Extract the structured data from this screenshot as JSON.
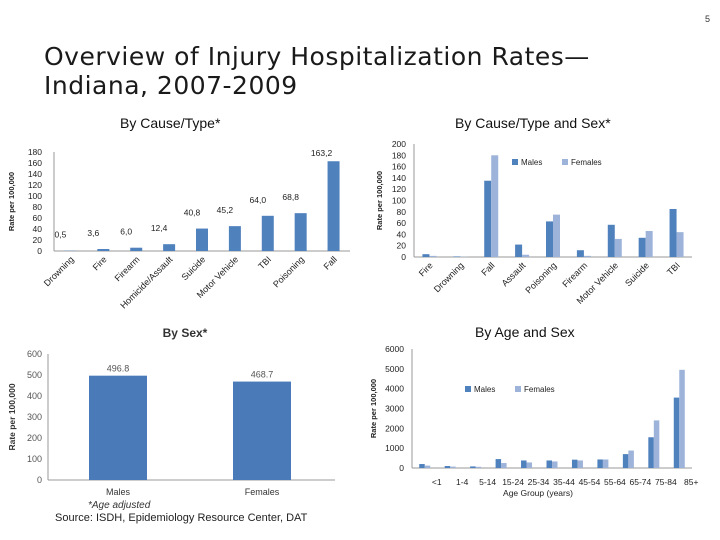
{
  "page": {
    "number": "5",
    "title_line1": "Overview of Injury Hospitalization Rates—",
    "title_line2": "Indiana, 2007-2009",
    "source": "Source: ISDH, Epidemiology Resource Center, DAT"
  },
  "colors": {
    "dark": "#4f81bd",
    "light": "#9db3d9",
    "sex_bar": "#4a7ab8"
  },
  "chart_data": [
    {
      "id": "by-cause-type",
      "type": "bar",
      "title": "By Cause/Type*",
      "ylabel": "Rate per 100,000",
      "ylim": [
        0,
        180
      ],
      "yticks": [
        0,
        20,
        40,
        60,
        80,
        100,
        120,
        140,
        160,
        180
      ],
      "categories": [
        "Drowning",
        "Fire",
        "Firearm",
        "Homicide/Assault",
        "Suicide",
        "Motor Vehicle",
        "TBI",
        "Poisoning",
        "Fall"
      ],
      "values": [
        0.5,
        3.6,
        6.0,
        12.4,
        40.8,
        45.2,
        64.0,
        68.8,
        163.2
      ],
      "value_labels": [
        "0,5",
        "3,6",
        "6,0",
        "12,4",
        "40,8",
        "45,2",
        "64,0",
        "68,8",
        "163,2"
      ]
    },
    {
      "id": "by-cause-type-sex",
      "type": "bar",
      "title": "By Cause/Type and Sex*",
      "ylabel": "Rate per 100,000",
      "ylim": [
        0,
        200
      ],
      "yticks": [
        0,
        20,
        40,
        60,
        80,
        100,
        120,
        140,
        160,
        180,
        200
      ],
      "categories": [
        "Fire",
        "Drowning",
        "Fall",
        "Assault",
        "Poisoning",
        "Firearm",
        "Motor Vehicle",
        "Suicide",
        "TBI"
      ],
      "series": [
        {
          "name": "Males",
          "values": [
            5,
            1,
            135,
            22,
            63,
            12,
            57,
            34,
            85
          ]
        },
        {
          "name": "Females",
          "values": [
            2,
            0.5,
            180,
            4,
            75,
            2,
            32,
            46,
            44
          ]
        }
      ]
    },
    {
      "id": "by-sex",
      "type": "bar",
      "title": "By Sex*",
      "ylabel": "Rate per 100,000",
      "ylim": [
        0,
        600
      ],
      "yticks": [
        0,
        100,
        200,
        300,
        400,
        500,
        600
      ],
      "categories": [
        "Males",
        "Females"
      ],
      "values": [
        496.8,
        468.7
      ],
      "value_labels": [
        "496.8",
        "468.7"
      ],
      "footnote": "*Age adjusted"
    },
    {
      "id": "by-age-sex",
      "type": "bar",
      "title": "By Age and Sex",
      "xlabel": "Age Group (years)",
      "ylabel": "Rate per 100,000",
      "ylim": [
        0,
        6000
      ],
      "yticks": [
        0,
        1000,
        2000,
        3000,
        4000,
        5000,
        6000
      ],
      "categories": [
        "<1",
        "1-4",
        "5-14",
        "15-24",
        "25-34",
        "35-44",
        "45-54",
        "55-64",
        "65-74",
        "75-84",
        "85+"
      ],
      "series": [
        {
          "name": "Males",
          "values": [
            200,
            100,
            80,
            450,
            380,
            380,
            420,
            430,
            700,
            1550,
            3550
          ]
        },
        {
          "name": "Females",
          "values": [
            120,
            70,
            60,
            250,
            280,
            330,
            380,
            430,
            880,
            2400,
            4950
          ]
        }
      ]
    }
  ]
}
